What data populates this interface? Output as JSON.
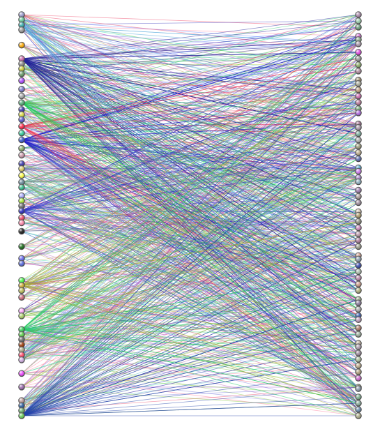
{
  "diagram": {
    "type": "bipartite-graph",
    "background": "#ffffff",
    "node_style": "glossy-circle",
    "edge_opacity": 0.5,
    "left_nodes": [
      {
        "color": "#9999cc"
      },
      {
        "color": "#66cc99"
      },
      {
        "color": "#33aaaa"
      },
      {
        "color": "#999999"
      },
      {
        "color": "#ffaa00"
      },
      {
        "color": "#cc66aa"
      },
      {
        "color": "#888888"
      },
      {
        "color": "#cccc33"
      },
      {
        "color": "#669966"
      },
      {
        "color": "#aa44ff"
      },
      {
        "color": "#7777cc"
      },
      {
        "color": "#aaaaaa"
      },
      {
        "color": "#55aa77"
      },
      {
        "color": "#3333aa"
      },
      {
        "color": "#dddd44"
      },
      {
        "color": "#5555cc"
      },
      {
        "color": "#ff2244"
      },
      {
        "color": "#33cc99"
      },
      {
        "color": "#3355cc"
      },
      {
        "color": "#88aa66"
      },
      {
        "color": "#cc99aa"
      },
      {
        "color": "#3333aa"
      },
      {
        "color": "#ddcc66"
      },
      {
        "color": "#ffff44"
      },
      {
        "color": "#668899"
      },
      {
        "color": "#33bb88"
      },
      {
        "color": "#aaaaff"
      },
      {
        "color": "#aaee33"
      },
      {
        "color": "#666666"
      },
      {
        "color": "#2222bb"
      },
      {
        "color": "#ee4466"
      },
      {
        "color": "#ff88aa"
      },
      {
        "color": "#111111"
      },
      {
        "color": "#116611"
      },
      {
        "color": "#6666ee"
      },
      {
        "color": "#5566dd"
      },
      {
        "color": "#44ff44"
      },
      {
        "color": "#ccaa33"
      },
      {
        "color": "#bbbb55"
      },
      {
        "color": "#cc6677"
      },
      {
        "color": "#ffaaff"
      },
      {
        "color": "#aacc66"
      },
      {
        "color": "#33cc55"
      },
      {
        "color": "#55cc44"
      },
      {
        "color": "#666666"
      },
      {
        "color": "#993300"
      },
      {
        "color": "#aaaa88"
      },
      {
        "color": "#ff4466"
      },
      {
        "color": "#ccaadd"
      },
      {
        "color": "#ee44ff"
      },
      {
        "color": "#9966aa"
      },
      {
        "color": "#bb9999"
      },
      {
        "color": "#225599"
      },
      {
        "color": "#66aa66"
      },
      {
        "color": "#66cc55"
      }
    ],
    "right_nodes": [
      {
        "color": "#aa88aa"
      },
      {
        "color": "#99ccaa"
      },
      {
        "color": "#669977"
      },
      {
        "color": "#cc66cc"
      },
      {
        "color": "#88aa88"
      },
      {
        "color": "#aa99aa"
      },
      {
        "color": "#dd44dd"
      },
      {
        "color": "#999999"
      },
      {
        "color": "#88aa66"
      },
      {
        "color": "#aa8899"
      },
      {
        "color": "#998866"
      },
      {
        "color": "#aaaa99"
      },
      {
        "color": "#bb9977"
      },
      {
        "color": "#cc66aa"
      },
      {
        "color": "#bb7799"
      },
      {
        "color": "#77aa77"
      },
      {
        "color": "#aa66dd"
      },
      {
        "color": "#996688"
      },
      {
        "color": "#aa99aa"
      },
      {
        "color": "#77aa99"
      },
      {
        "color": "#aaaaaa"
      },
      {
        "color": "#999977"
      },
      {
        "color": "#bbaa88"
      },
      {
        "color": "#5566aa"
      },
      {
        "color": "#55aacc"
      },
      {
        "color": "#cc77ee"
      },
      {
        "color": "#aa88cc"
      },
      {
        "color": "#88aabb"
      },
      {
        "color": "#9977aa"
      },
      {
        "color": "#aa9999"
      },
      {
        "color": "#998899"
      },
      {
        "color": "#ccbbaa"
      },
      {
        "color": "#aa9966"
      },
      {
        "color": "#888877"
      },
      {
        "color": "#cc88bb"
      },
      {
        "color": "#bb99aa"
      },
      {
        "color": "#aa7799"
      },
      {
        "color": "#999988"
      },
      {
        "color": "#cc9988"
      },
      {
        "color": "#8899aa"
      },
      {
        "color": "#3344aa"
      },
      {
        "color": "#aabbaa"
      },
      {
        "color": "#bb88aa"
      },
      {
        "color": "#cc9988"
      },
      {
        "color": "#aaaa77"
      },
      {
        "color": "#99aa88"
      },
      {
        "color": "#887799"
      },
      {
        "color": "#aaaaaa"
      },
      {
        "color": "#3355aa"
      },
      {
        "color": "#bb99bb"
      },
      {
        "color": "#aa7766"
      },
      {
        "color": "#99aa99"
      },
      {
        "color": "#bbaa99"
      },
      {
        "color": "#aa99aa"
      },
      {
        "color": "#998899"
      },
      {
        "color": "#aabb99"
      },
      {
        "color": "#bbaa88"
      },
      {
        "color": "#aa9977"
      },
      {
        "color": "#cc66cc"
      },
      {
        "color": "#99aa77"
      },
      {
        "color": "#8899aa"
      },
      {
        "color": "#77aa88"
      },
      {
        "color": "#88aa99"
      },
      {
        "color": "#6688aa"
      },
      {
        "color": "#aaaa88"
      }
    ],
    "edge_palette": [
      "#3333bb",
      "#cc3377",
      "#33cc77",
      "#aacc33",
      "#9944cc",
      "#55bbcc",
      "#ee4466",
      "#44aa44",
      "#ccaa55",
      "#7777dd",
      "#bb66bb",
      "#33ddaa",
      "#ff7799",
      "#6688ff",
      "#88cc44"
    ],
    "hubs": [
      {
        "node": 5,
        "color": "#222299",
        "count": 60
      },
      {
        "node": 18,
        "color": "#2222cc",
        "count": 45
      },
      {
        "node": 16,
        "color": "#ee3355",
        "count": 25
      },
      {
        "node": 12,
        "color": "#22cc55",
        "count": 30
      },
      {
        "node": 54,
        "color": "#2244aa",
        "count": 55
      },
      {
        "node": 42,
        "color": "#22cc66",
        "count": 30
      },
      {
        "node": 29,
        "color": "#3333cc",
        "count": 30
      },
      {
        "node": 37,
        "color": "#aaaa33",
        "count": 25
      },
      {
        "node": 2,
        "color": "#55aadd",
        "count": 25
      },
      {
        "node": 24,
        "color": "#66aa88",
        "count": 20
      }
    ],
    "random_edges": 700,
    "seed": 17
  }
}
